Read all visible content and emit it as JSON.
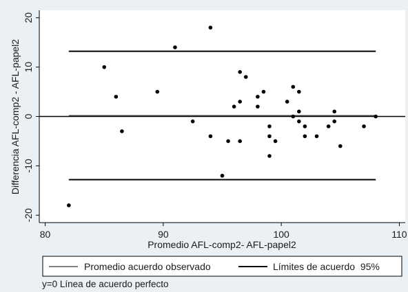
{
  "chart_data": {
    "type": "scatter",
    "xlabel": "Promedio AFL-comp2- AFL-papel2",
    "ylabel": "Differencia AFL-comp2 - AFL-papel2",
    "xlim": [
      79.5,
      110.5
    ],
    "ylim": [
      -21.5,
      21.5
    ],
    "x_ticks": [
      80,
      90,
      100,
      110
    ],
    "y_ticks": [
      -20,
      -10,
      0,
      10,
      20
    ],
    "grid": false,
    "series": [
      {
        "x": [
          82,
          85,
          86,
          86.5,
          89.5,
          91,
          92.5,
          94,
          94,
          95,
          95.5,
          96,
          96.5,
          96.5,
          96.5,
          97,
          98,
          98,
          98.5,
          99,
          99,
          99,
          99.5,
          100.5,
          101,
          101,
          101.5,
          101.5,
          101.5,
          102,
          102,
          103,
          104,
          104.5,
          104.5,
          105,
          107,
          108
        ],
        "y": [
          -18,
          10,
          4,
          -3,
          5,
          14,
          -1,
          18,
          -4,
          -12,
          -5,
          2,
          9,
          3,
          -5,
          8,
          4,
          2,
          5,
          -2,
          -4,
          -8,
          -5,
          3,
          6,
          0,
          5,
          1,
          -1,
          -2,
          -4,
          -4,
          -2,
          1,
          -1,
          -6,
          -2,
          0
        ]
      }
    ],
    "lines": {
      "mean_difference": 0.2,
      "upper_limit": 13.2,
      "lower_limit": -12.8,
      "perfect_agreement": 0,
      "x_range": [
        82,
        108
      ]
    },
    "legend": {
      "placement": "bottom",
      "items": [
        {
          "label": "Promedio acuerdo observado",
          "style": "thin"
        },
        {
          "label": "Límites de acuerdo  95%",
          "style": "thick"
        }
      ]
    },
    "note": "y=0 Línea de acuerdo perfecto"
  },
  "colors": {
    "background": "#eaf0f3",
    "plot_background": "#ffffff",
    "ink": "#000000"
  }
}
